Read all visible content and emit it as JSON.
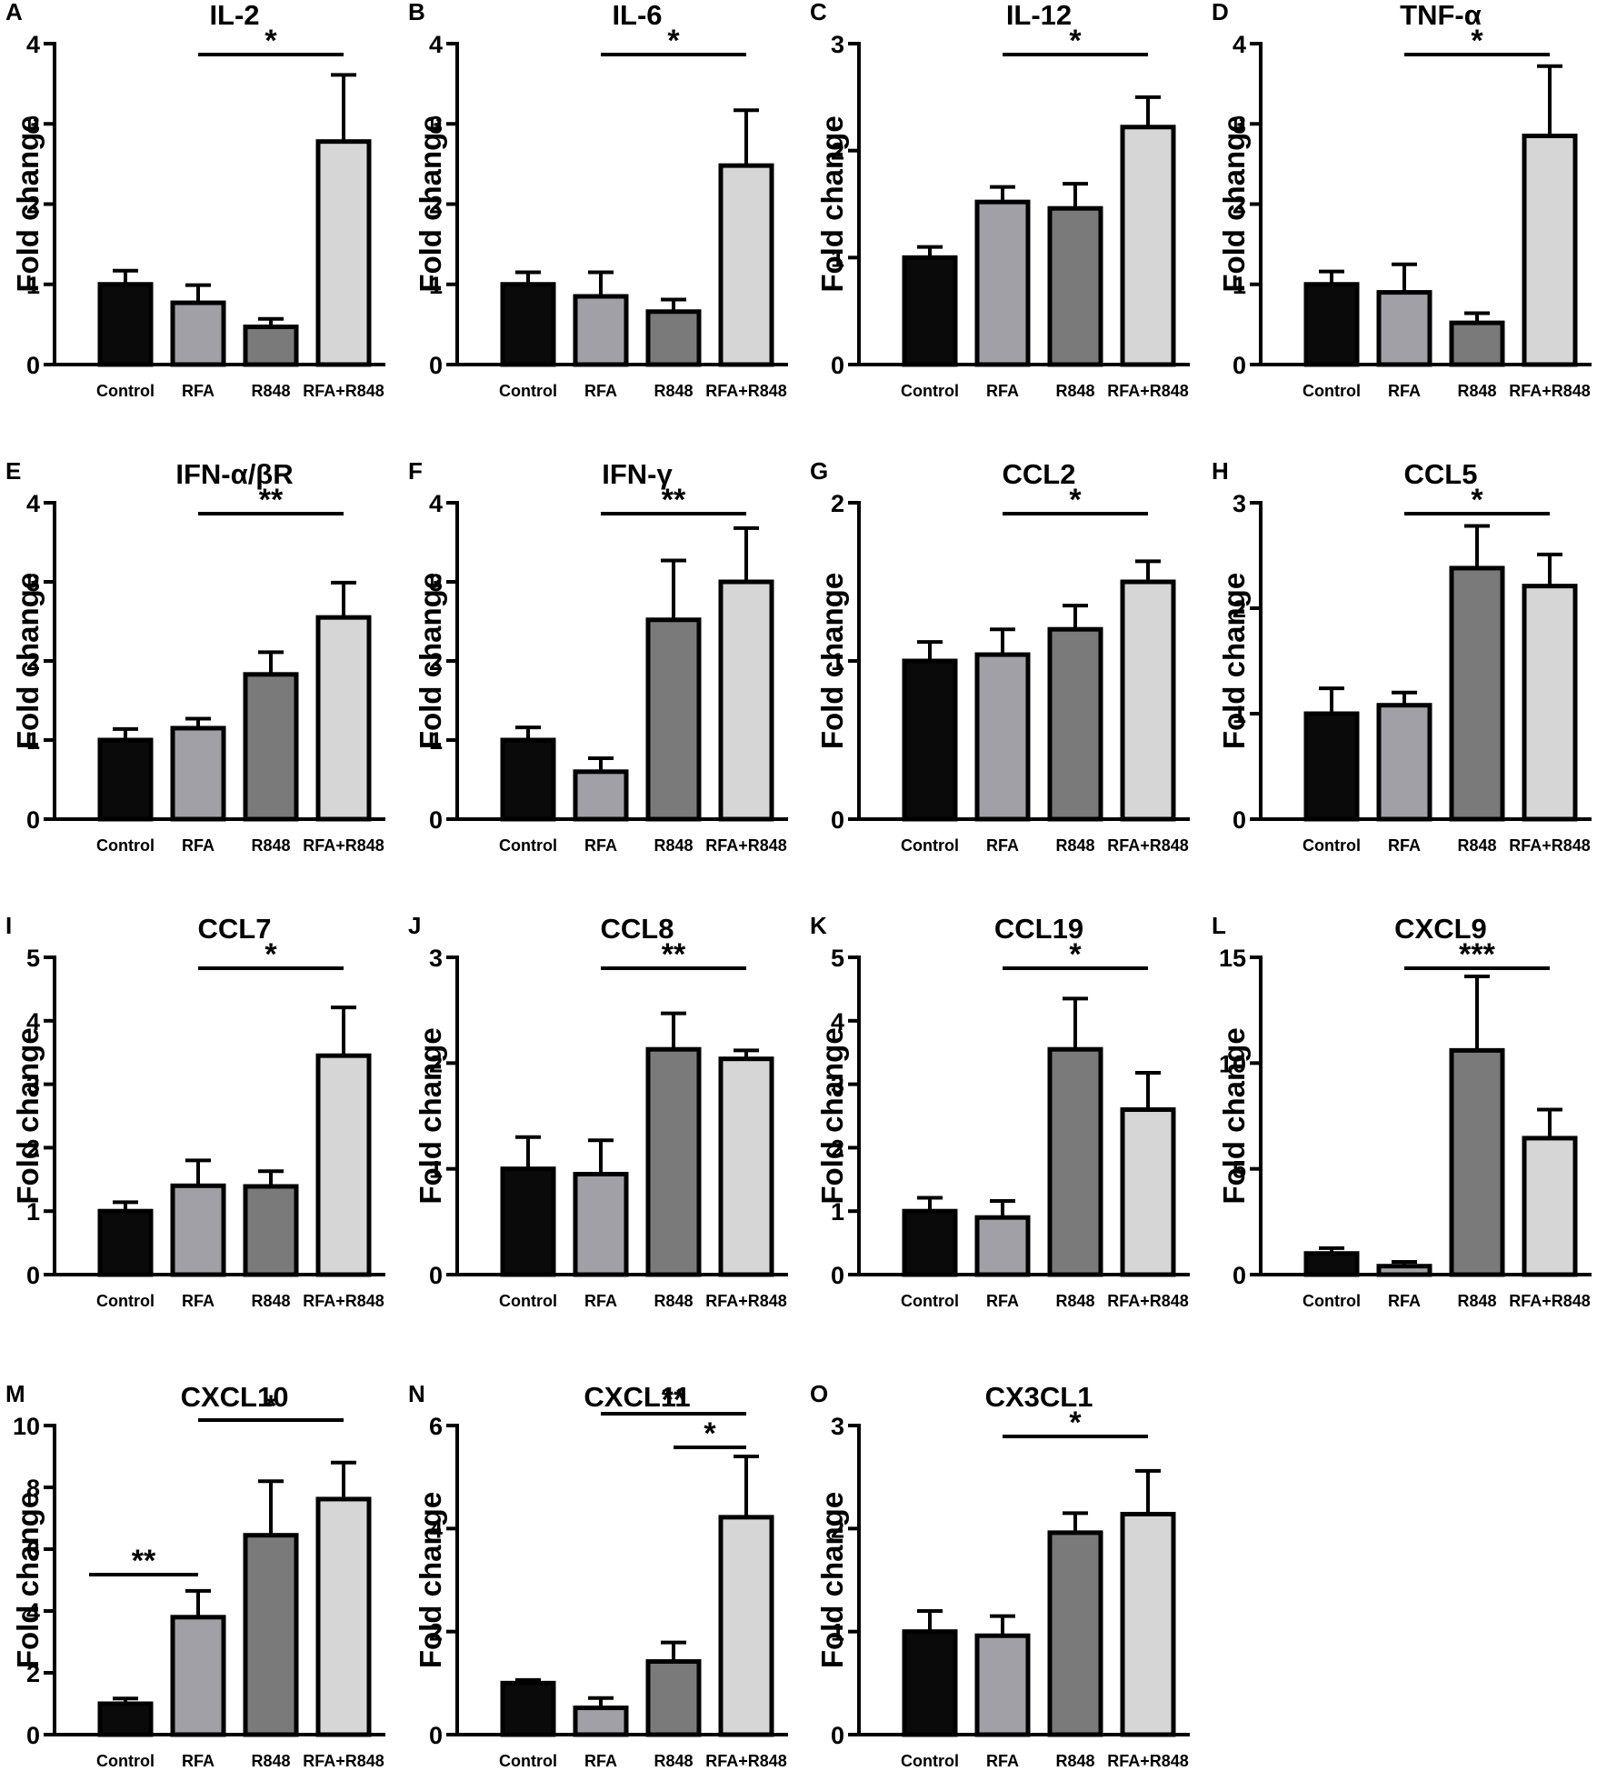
{
  "figure": {
    "categories": [
      "Control",
      "RFA",
      "R848",
      "RFA+R848"
    ],
    "bar_colors": [
      "#0a0a0a",
      "#a0a0a6",
      "#7a7a7a",
      "#d6d6d6"
    ],
    "y_axis_label": "Fold change"
  },
  "chart_data": [
    {
      "type": "bar",
      "label": "A",
      "title": "IL-2",
      "ylim": [
        0,
        4
      ],
      "yticks": [
        0,
        1,
        2,
        3,
        4
      ],
      "values": [
        1.0,
        0.77,
        0.47,
        2.78
      ],
      "errors": [
        0.17,
        0.22,
        0.1,
        0.83
      ],
      "significance": [
        {
          "from": 1,
          "to": 3,
          "text": "*"
        }
      ]
    },
    {
      "type": "bar",
      "label": "B",
      "title": "IL-6",
      "ylim": [
        0,
        4
      ],
      "yticks": [
        0,
        1,
        2,
        3,
        4
      ],
      "values": [
        1.0,
        0.85,
        0.66,
        2.48
      ],
      "errors": [
        0.15,
        0.3,
        0.15,
        0.69
      ],
      "significance": [
        {
          "from": 1,
          "to": 3,
          "text": "*"
        }
      ]
    },
    {
      "type": "bar",
      "label": "C",
      "title": "IL-12",
      "ylim": [
        0,
        3
      ],
      "yticks": [
        0,
        1,
        2,
        3
      ],
      "values": [
        1.0,
        1.52,
        1.46,
        2.22
      ],
      "errors": [
        0.1,
        0.14,
        0.23,
        0.28
      ],
      "significance": [
        {
          "from": 1,
          "to": 3,
          "text": "*"
        }
      ]
    },
    {
      "type": "bar",
      "label": "D",
      "title": "TNF-α",
      "ylim": [
        0,
        4
      ],
      "yticks": [
        0,
        1,
        2,
        3,
        4
      ],
      "values": [
        1.0,
        0.9,
        0.52,
        2.85
      ],
      "errors": [
        0.16,
        0.35,
        0.12,
        0.87
      ],
      "significance": [
        {
          "from": 1,
          "to": 3,
          "text": "*"
        }
      ]
    },
    {
      "type": "bar",
      "label": "E",
      "title": "IFN-α/βR",
      "ylim": [
        0,
        4
      ],
      "yticks": [
        0,
        1,
        2,
        3,
        4
      ],
      "values": [
        1.0,
        1.15,
        1.83,
        2.55
      ],
      "errors": [
        0.14,
        0.12,
        0.28,
        0.44
      ],
      "significance": [
        {
          "from": 1,
          "to": 3,
          "text": "**"
        }
      ]
    },
    {
      "type": "bar",
      "label": "F",
      "title": "IFN-γ",
      "ylim": [
        0,
        4
      ],
      "yticks": [
        0,
        1,
        2,
        3,
        4
      ],
      "values": [
        1.0,
        0.6,
        2.52,
        3.0
      ],
      "errors": [
        0.16,
        0.17,
        0.75,
        0.68
      ],
      "significance": [
        {
          "from": 1,
          "to": 3,
          "text": "**"
        }
      ]
    },
    {
      "type": "bar",
      "label": "G",
      "title": "CCL2",
      "ylim": [
        0,
        2
      ],
      "yticks": [
        0,
        1,
        2
      ],
      "values": [
        1.0,
        1.04,
        1.2,
        1.5
      ],
      "errors": [
        0.12,
        0.16,
        0.15,
        0.13
      ],
      "significance": [
        {
          "from": 1,
          "to": 3,
          "text": "*"
        }
      ]
    },
    {
      "type": "bar",
      "label": "H",
      "title": "CCL5",
      "ylim": [
        0,
        3
      ],
      "yticks": [
        0,
        1,
        2,
        3
      ],
      "values": [
        1.0,
        1.08,
        2.38,
        2.21
      ],
      "errors": [
        0.24,
        0.12,
        0.4,
        0.3
      ],
      "significance": [
        {
          "from": 1,
          "to": 3,
          "text": "*"
        }
      ]
    },
    {
      "type": "bar",
      "label": "I",
      "title": "CCL7",
      "ylim": [
        0,
        5
      ],
      "yticks": [
        0,
        1,
        2,
        3,
        4,
        5
      ],
      "values": [
        1.0,
        1.4,
        1.39,
        3.45
      ],
      "errors": [
        0.14,
        0.4,
        0.24,
        0.76
      ],
      "significance": [
        {
          "from": 1,
          "to": 3,
          "text": "*"
        }
      ]
    },
    {
      "type": "bar",
      "label": "J",
      "title": "CCL8",
      "ylim": [
        0,
        3
      ],
      "yticks": [
        0,
        1,
        2,
        3
      ],
      "values": [
        1.0,
        0.95,
        2.13,
        2.04
      ],
      "errors": [
        0.3,
        0.32,
        0.34,
        0.08
      ],
      "significance": [
        {
          "from": 1,
          "to": 3,
          "text": "**"
        }
      ]
    },
    {
      "type": "bar",
      "label": "K",
      "title": "CCL19",
      "ylim": [
        0,
        5
      ],
      "yticks": [
        0,
        1,
        2,
        3,
        4,
        5
      ],
      "values": [
        1.0,
        0.9,
        3.55,
        2.6
      ],
      "errors": [
        0.21,
        0.26,
        0.8,
        0.58
      ],
      "significance": [
        {
          "from": 1,
          "to": 3,
          "text": "*"
        }
      ]
    },
    {
      "type": "bar",
      "label": "L",
      "title": "CXCL9",
      "ylim": [
        0,
        15
      ],
      "yticks": [
        0,
        5,
        10,
        15
      ],
      "values": [
        1.0,
        0.4,
        10.6,
        6.45
      ],
      "errors": [
        0.25,
        0.2,
        3.5,
        1.35
      ],
      "significance": [
        {
          "from": 1,
          "to": 3,
          "text": "***"
        }
      ]
    },
    {
      "type": "bar",
      "label": "M",
      "title": "CXCL10",
      "ylim": [
        0,
        10
      ],
      "yticks": [
        0,
        2,
        4,
        6,
        8,
        10
      ],
      "values": [
        1.0,
        3.8,
        6.45,
        7.62
      ],
      "errors": [
        0.17,
        0.85,
        1.75,
        1.18
      ],
      "significance": [
        {
          "from": 0,
          "to": 1,
          "text": "**"
        },
        {
          "from": 1,
          "to": 3,
          "text": "*"
        }
      ]
    },
    {
      "type": "bar",
      "label": "N",
      "title": "CXCL11",
      "ylim": [
        0,
        6
      ],
      "yticks": [
        0,
        2,
        4,
        6
      ],
      "values": [
        1.0,
        0.52,
        1.42,
        4.22
      ],
      "errors": [
        0.06,
        0.19,
        0.37,
        1.18
      ],
      "significance": [
        {
          "from": 1,
          "to": 3,
          "text": "**"
        },
        {
          "from": 2,
          "to": 3,
          "text": "*"
        }
      ]
    },
    {
      "type": "bar",
      "label": "O",
      "title": "CX3CL1",
      "ylim": [
        0,
        3
      ],
      "yticks": [
        0,
        1,
        2,
        3
      ],
      "values": [
        1.0,
        0.96,
        1.96,
        2.14
      ],
      "errors": [
        0.2,
        0.19,
        0.19,
        0.42
      ],
      "significance": [
        {
          "from": 1,
          "to": 3,
          "text": "*"
        }
      ]
    }
  ]
}
